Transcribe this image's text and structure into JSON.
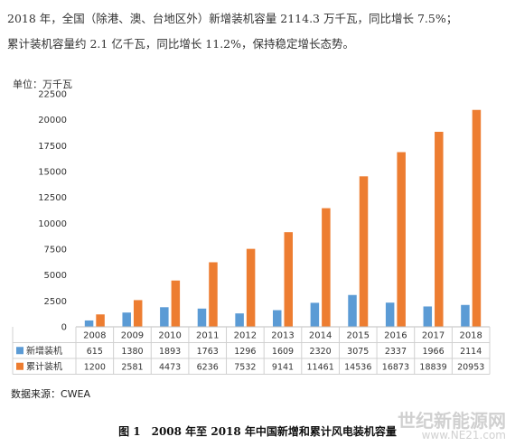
{
  "intro": {
    "line1": "2018 年，全国（除港、澳、台地区外）新增装机容量 2114.3 万千瓦，同比增长 7.5%；",
    "line2": "累计装机容量约 2.1 亿千瓦，同比增长 11.2%，保持稳定增长态势。"
  },
  "chart_data": {
    "type": "bar",
    "unit_label": "单位：万千瓦",
    "categories": [
      "2008",
      "2009",
      "2010",
      "2011",
      "2012",
      "2013",
      "2014",
      "2015",
      "2016",
      "2017",
      "2018"
    ],
    "series": [
      {
        "name": "新增装机",
        "color": "#5b9bd5",
        "values": [
          615,
          1380,
          1893,
          1763,
          1296,
          1609,
          2320,
          3075,
          2337,
          1966,
          2114
        ]
      },
      {
        "name": "累计装机",
        "color": "#ed7d31",
        "values": [
          1200,
          2581,
          4473,
          6236,
          7532,
          9141,
          11461,
          14536,
          16873,
          18839,
          20953
        ]
      }
    ],
    "ylim": [
      0,
      22500
    ],
    "yticks": [
      0,
      2500,
      5000,
      7500,
      10000,
      12500,
      15000,
      17500,
      20000,
      22500
    ],
    "grid": false,
    "legend": "data-table-below"
  },
  "source": "数据来源：CWEA",
  "caption": "图 1　2008 年至 2018 年中国新增和累计风电装机容量",
  "watermark": {
    "name": "世纪新能源网",
    "url": "www.NE21.com"
  }
}
